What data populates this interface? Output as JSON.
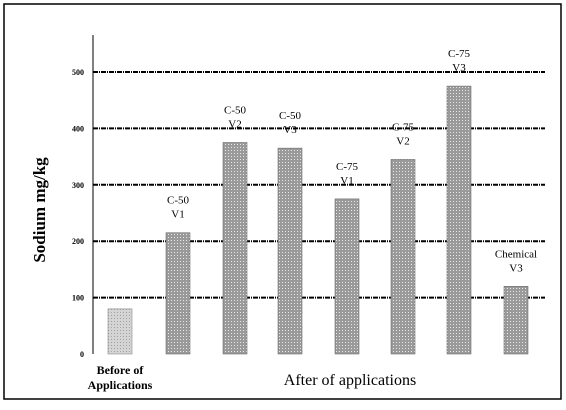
{
  "chart_data": {
    "type": "bar",
    "title": "",
    "ylabel": "Sodium mg/kg",
    "xlabel": "After of applications",
    "ylim": [
      0,
      500
    ],
    "yticks": [
      0,
      100,
      200,
      300,
      400,
      500
    ],
    "grid": true,
    "categories": [
      [
        "Before of",
        "Applications"
      ],
      [
        "C-50",
        "V1"
      ],
      [
        "C-50",
        "V2"
      ],
      [
        "C-50",
        "V3"
      ],
      [
        "C-75",
        "V1"
      ],
      [
        "C-75",
        "V2"
      ],
      [
        "C-75",
        "V3"
      ],
      [
        "Chemical",
        "V3"
      ]
    ],
    "values": [
      80,
      215,
      375,
      365,
      275,
      345,
      475,
      120
    ],
    "colors": {
      "before_bar": "#d4d4d4",
      "after_bar": "#9a9a9a",
      "grid": "#000000"
    }
  }
}
